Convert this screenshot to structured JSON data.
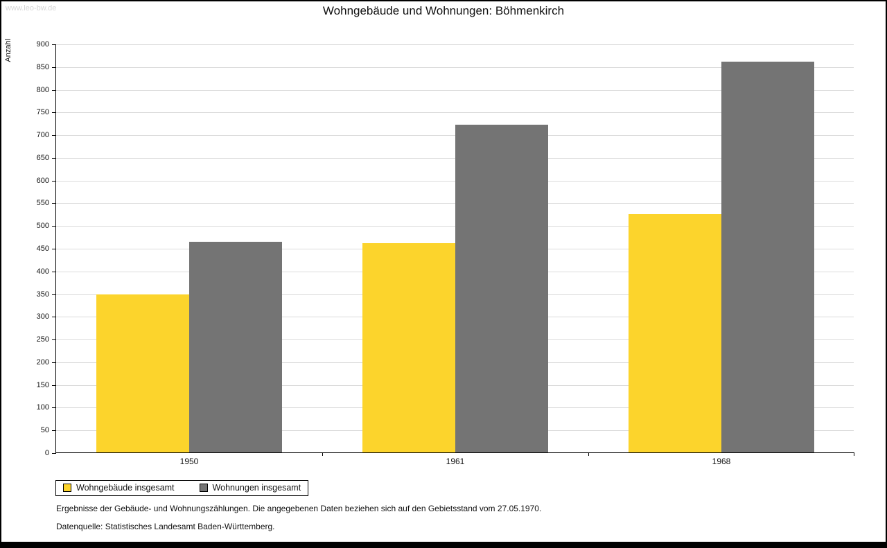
{
  "page": {
    "watermark": "www.leo-bw.de",
    "footnote1": "Ergebnisse der Gebäude- und Wohnungszählungen. Die angegebenen Daten beziehen sich auf den Gebietsstand vom 27.05.1970.",
    "footnote2": "Datenquelle: Statistisches Landesamt Baden-Württemberg."
  },
  "chart_data": {
    "type": "bar",
    "title": "Wohngebäude und Wohnungen: Böhmenkirch",
    "xlabel": "",
    "ylabel": "Anzahl",
    "categories": [
      "1950",
      "1961",
      "1968"
    ],
    "series": [
      {
        "name": "Wohngebäude insgesamt",
        "color": "#fcd42c",
        "values": [
          348,
          460,
          525
        ]
      },
      {
        "name": "Wohnungen insgesamt",
        "color": "#747474",
        "values": [
          463,
          722,
          860
        ]
      }
    ],
    "ylim": [
      0,
      900
    ],
    "ytick_step": 50,
    "grid": true,
    "legend_position": "bottom-left"
  }
}
